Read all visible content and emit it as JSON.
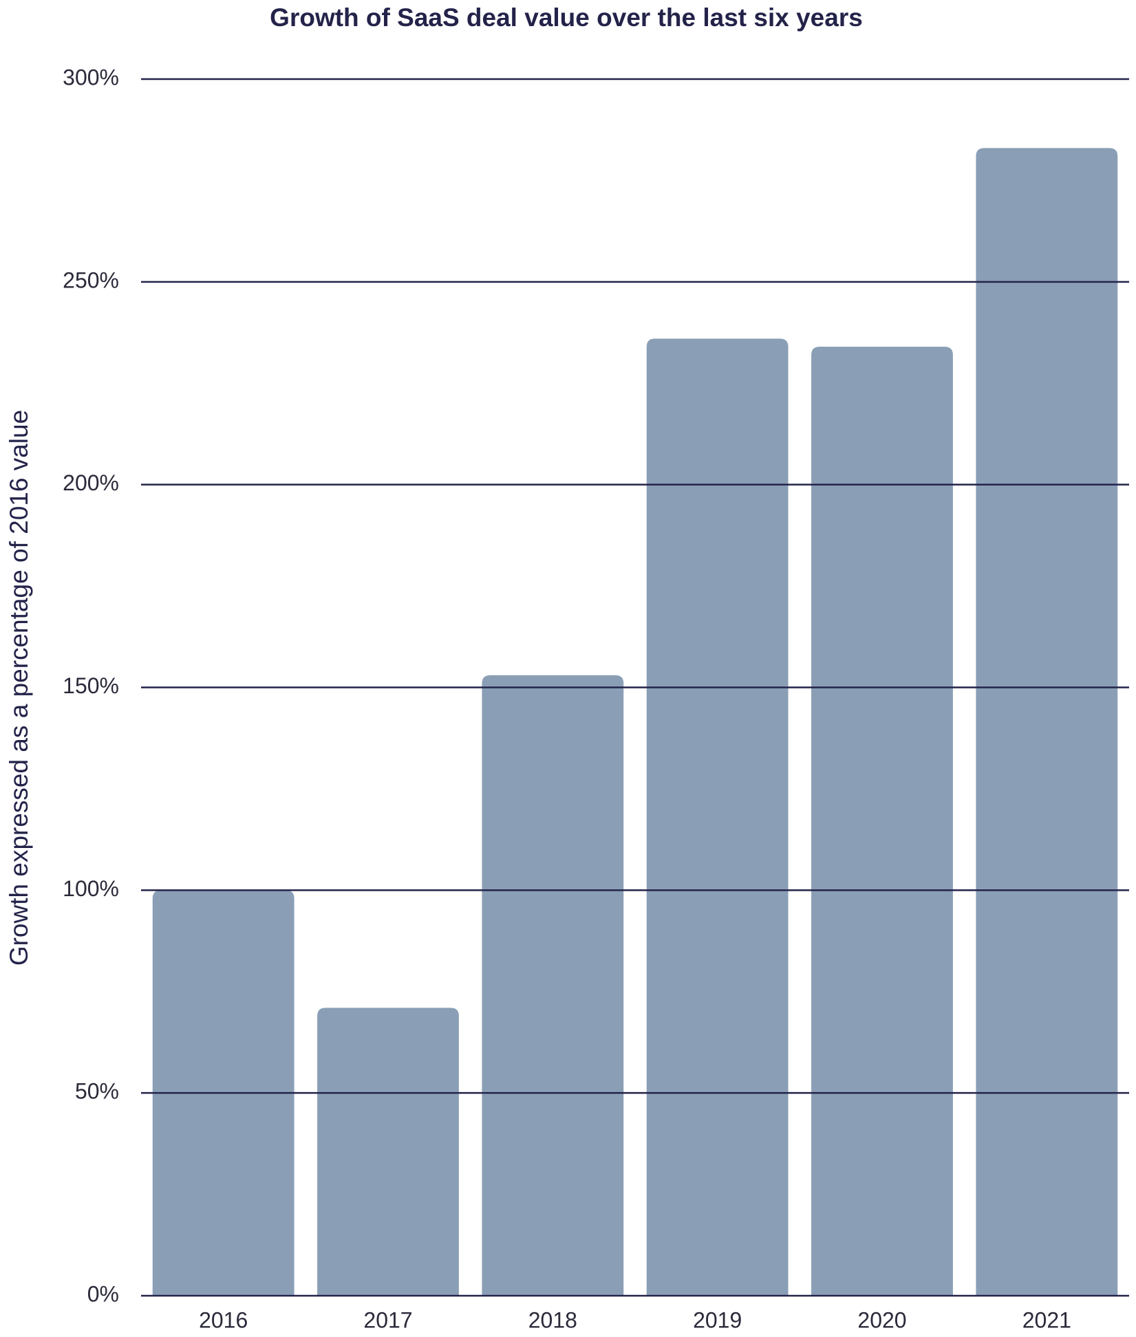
{
  "chart_data": {
    "type": "bar",
    "title": "Growth of SaaS deal value over the last six years",
    "y_label": "Growth expressed as a percentage of 2016 value",
    "categories": [
      "2016",
      "2017",
      "2018",
      "2019",
      "2020",
      "2021"
    ],
    "values": [
      100,
      71,
      153,
      236,
      234,
      283
    ],
    "color": "#8a9fb6",
    "ylim": [
      0,
      300
    ],
    "yticks": [
      {
        "value": 0,
        "label": "0%"
      },
      {
        "value": 50,
        "label": "50%"
      },
      {
        "value": 100,
        "label": "100%"
      },
      {
        "value": 150,
        "label": "150%"
      },
      {
        "value": 200,
        "label": "200%"
      },
      {
        "value": 250,
        "label": "250%"
      },
      {
        "value": 300,
        "label": "300%"
      }
    ],
    "grid": true
  }
}
